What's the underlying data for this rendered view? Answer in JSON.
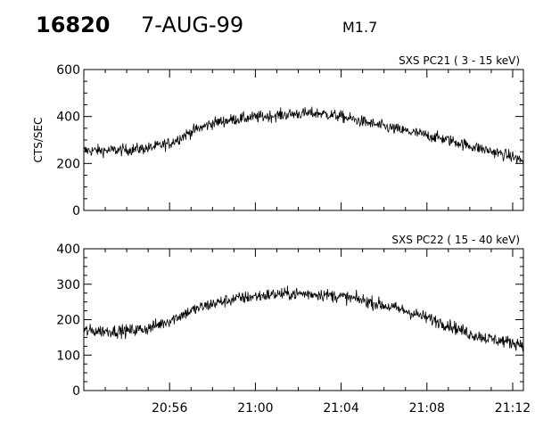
{
  "header": {
    "event_id": "16820",
    "date": "7-AUG-99",
    "flare_class": "M1.7"
  },
  "chart_data": [
    {
      "type": "line",
      "title": "SXS PC21  (  3 - 15 keV)",
      "ylabel": "CTS/SEC",
      "xlabel": "",
      "ylim": [
        0,
        600
      ],
      "yticks": [
        0,
        200,
        400,
        600
      ],
      "ytick_labels": [
        "0",
        "200",
        "400",
        "600"
      ],
      "xlim": [
        "20:52:00",
        "21:12:30"
      ],
      "xticks": [
        "20:56",
        "21:00",
        "21:04",
        "21:08",
        "21:12"
      ],
      "xtick_labels": [],
      "series": [
        {
          "x": [
            "20:52:00",
            "20:53:00",
            "20:54:00",
            "20:55:00",
            "20:56:00",
            "20:57:00",
            "20:58:00",
            "20:59:00",
            "21:00:00",
            "21:01:00",
            "21:02:00",
            "21:03:00",
            "21:04:00",
            "21:05:00",
            "21:06:00",
            "21:07:00",
            "21:08:00",
            "21:09:00",
            "21:10:00",
            "21:11:00",
            "21:12:00",
            "21:12:30"
          ],
          "y": [
            255,
            255,
            258,
            265,
            285,
            335,
            372,
            388,
            397,
            405,
            412,
            414,
            400,
            378,
            357,
            338,
            320,
            300,
            275,
            252,
            228,
            210
          ],
          "noise": 18
        }
      ]
    },
    {
      "type": "line",
      "title": "SXS PC22  ( 15 - 40 keV)",
      "ylabel": "",
      "xlabel": "",
      "ylim": [
        0,
        400
      ],
      "yticks": [
        0,
        100,
        200,
        300,
        400
      ],
      "ytick_labels": [
        "0",
        "100",
        "200",
        "300",
        "400"
      ],
      "xlim": [
        "20:52:00",
        "21:12:30"
      ],
      "xticks": [
        "20:56",
        "21:00",
        "21:04",
        "21:08",
        "21:12"
      ],
      "xtick_labels": [
        "20:56",
        "21:00",
        "21:04",
        "21:08",
        "21:12"
      ],
      "series": [
        {
          "x": [
            "20:52:00",
            "20:53:00",
            "20:54:00",
            "20:55:00",
            "20:56:00",
            "20:57:00",
            "20:58:00",
            "20:59:00",
            "21:00:00",
            "21:01:00",
            "21:02:00",
            "21:03:00",
            "21:04:00",
            "21:05:00",
            "21:06:00",
            "21:07:00",
            "21:08:00",
            "21:09:00",
            "21:10:00",
            "21:11:00",
            "21:12:00",
            "21:12:30"
          ],
          "y": [
            168,
            168,
            168,
            175,
            198,
            225,
            245,
            258,
            266,
            272,
            273,
            272,
            265,
            255,
            240,
            225,
            205,
            185,
            160,
            145,
            135,
            132
          ],
          "noise": 13
        }
      ]
    }
  ]
}
